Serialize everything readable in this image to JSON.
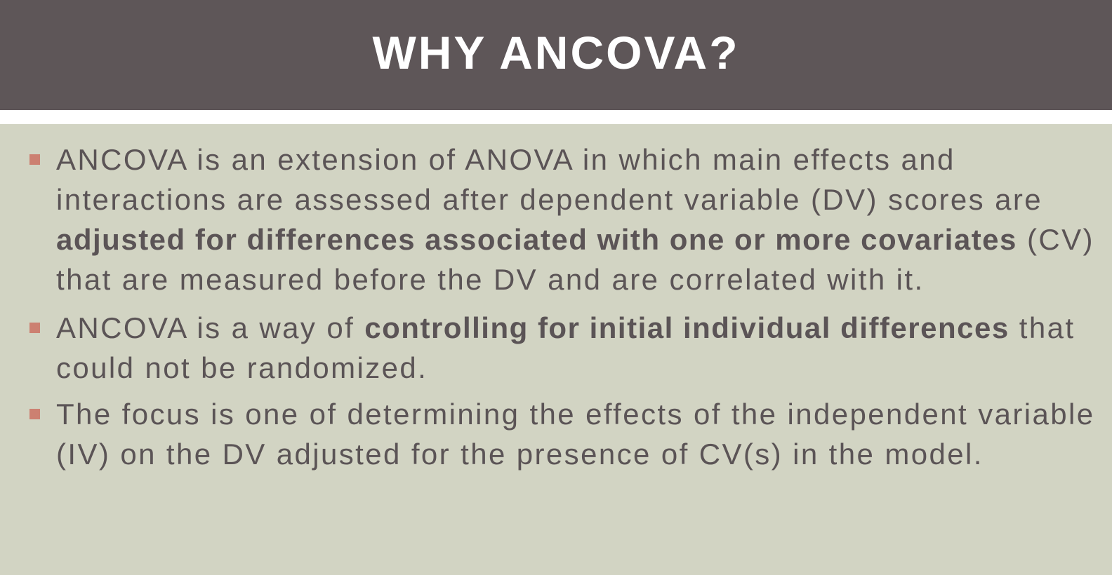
{
  "slide": {
    "title": "WHY ANCOVA?",
    "colors": {
      "title_band": "#5e5658",
      "body_background": "#d2d4c3",
      "text": "#5b5456",
      "bullet_marker": "#cc8071"
    },
    "bullets": [
      {
        "segments": [
          {
            "text": "ANCOVA is an extension of ANOVA in which main effects and interactions are assessed after dependent variable (DV) scores are ",
            "bold": false
          },
          {
            "text": "adjusted for differences associated with one or more covariates",
            "bold": true
          },
          {
            "text": " (CV) that are measured before the DV and are correlated with it.",
            "bold": false
          }
        ]
      },
      {
        "segments": [
          {
            "text": "ANCOVA is a way of ",
            "bold": false
          },
          {
            "text": "controlling for initial individual differences",
            "bold": true
          },
          {
            "text": " that could not be randomized.",
            "bold": false
          }
        ]
      },
      {
        "segments": [
          {
            "text": "The focus is one of determining the effects of the independent variable (IV) on the DV adjusted for the presence of CV(s) in the model.",
            "bold": false
          }
        ]
      }
    ]
  }
}
